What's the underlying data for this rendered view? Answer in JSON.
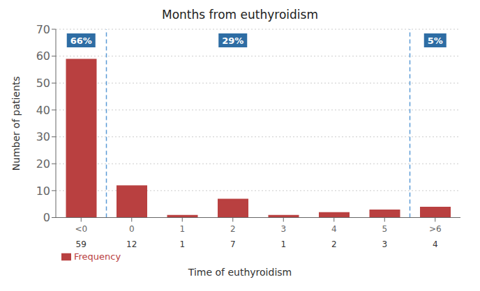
{
  "chart_data": {
    "type": "bar",
    "title": "Months from euthyroidism",
    "xlabel": "Time of euthyroidism",
    "ylabel": "Number of patients",
    "categories": [
      "<0",
      "0",
      "1",
      "2",
      "3",
      "4",
      "5",
      ">6"
    ],
    "series": [
      {
        "name": "Frequency",
        "color": "#b94040",
        "values": [
          59,
          12,
          1,
          7,
          1,
          2,
          3,
          4
        ]
      }
    ],
    "ylim": [
      0,
      70
    ],
    "yticks": [
      0,
      10,
      20,
      30,
      40,
      50,
      60,
      70
    ],
    "grid": true,
    "legend": "lower left",
    "frequency_row": [
      59,
      12,
      1,
      7,
      1,
      2,
      3,
      4
    ],
    "groups": [
      {
        "label": "66%",
        "categories": [
          "<0"
        ]
      },
      {
        "label": "29%",
        "categories": [
          "0",
          "1",
          "2",
          "3",
          "4",
          "5"
        ]
      },
      {
        "label": "5%",
        "categories": [
          ">6"
        ]
      }
    ]
  }
}
